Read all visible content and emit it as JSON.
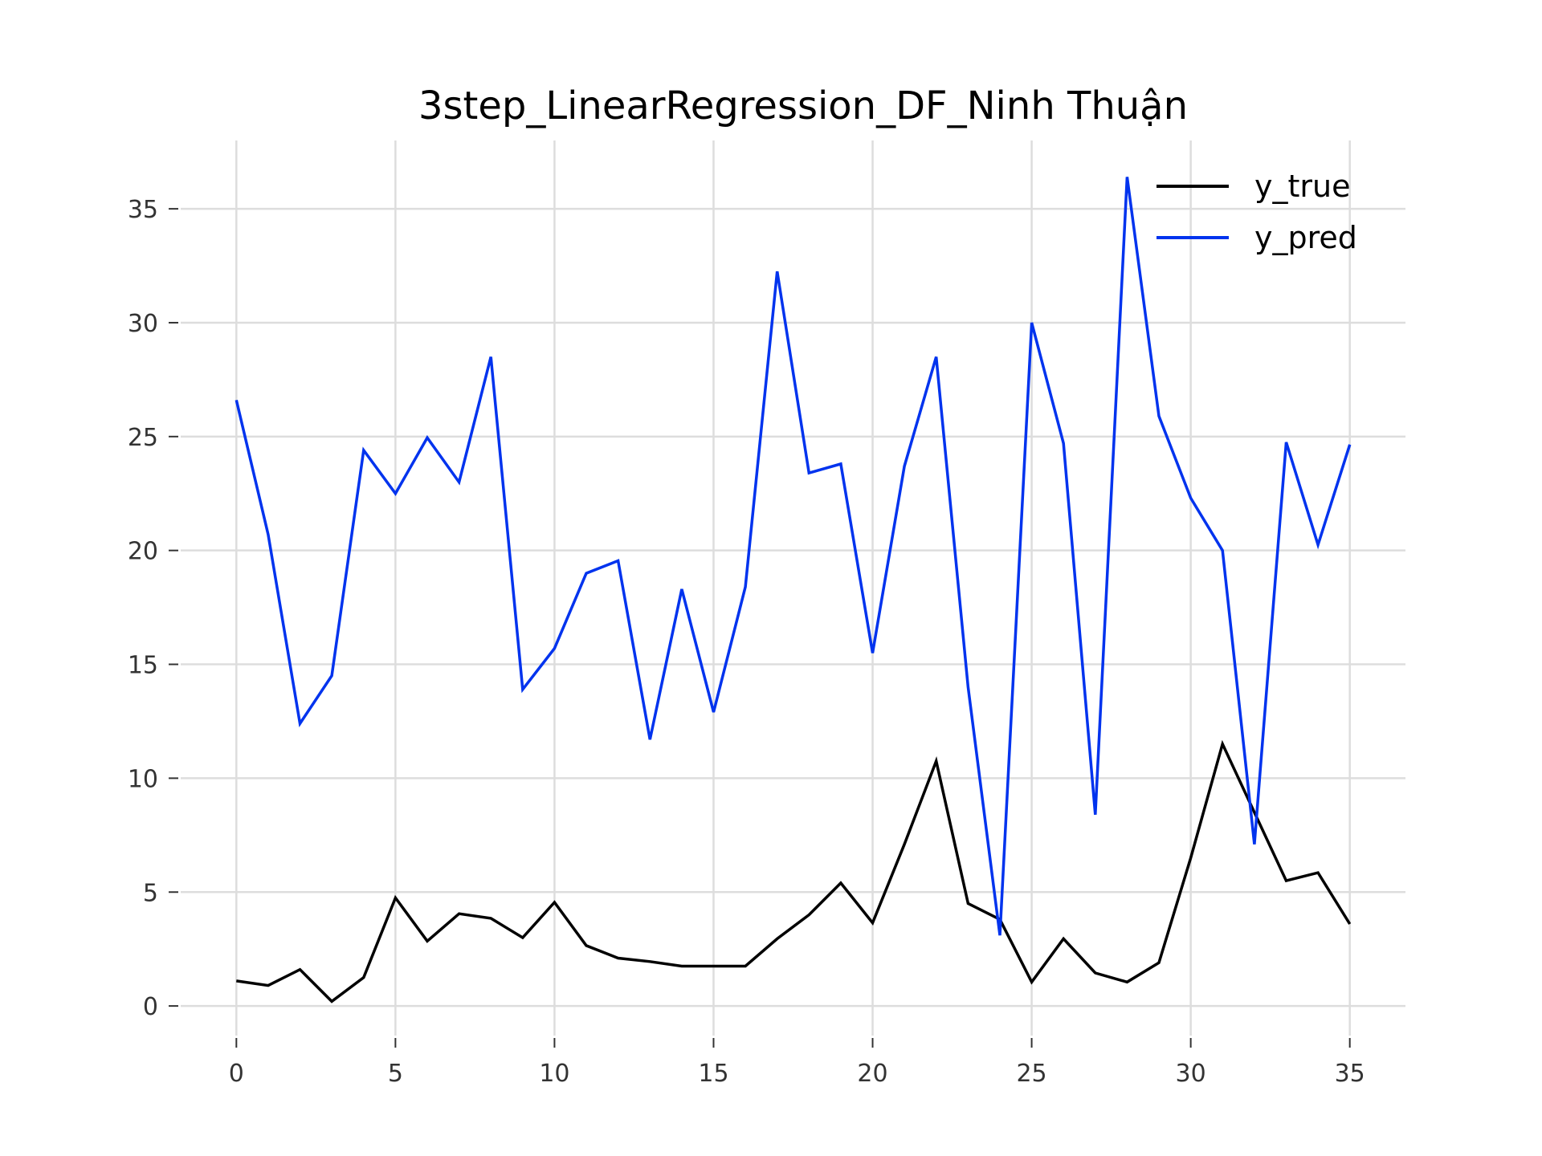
{
  "chart_data": {
    "type": "line",
    "title": "3step_LinearRegression_DF_Ninh Thuận",
    "xlabel": "",
    "ylabel": "",
    "x": [
      0,
      1,
      2,
      3,
      4,
      5,
      6,
      7,
      8,
      9,
      10,
      11,
      12,
      13,
      14,
      15,
      16,
      17,
      18,
      19,
      20,
      21,
      22,
      23,
      24,
      25,
      26,
      27,
      28,
      29,
      30,
      31,
      32,
      33,
      34,
      35
    ],
    "xlim": [
      -1.75,
      36.75
    ],
    "ylim": [
      -1.3,
      38.0
    ],
    "xticks": [
      0,
      5,
      10,
      15,
      20,
      25,
      30,
      35
    ],
    "yticks": [
      0,
      5,
      10,
      15,
      20,
      25,
      30,
      35
    ],
    "grid": true,
    "legend_position": "top-right",
    "series": [
      {
        "name": "y_true",
        "color": "#000000",
        "values": [
          1.1,
          0.9,
          1.6,
          0.2,
          1.25,
          4.75,
          2.85,
          4.05,
          3.85,
          3.0,
          4.55,
          2.65,
          2.1,
          1.95,
          1.75,
          1.75,
          1.75,
          2.95,
          4.0,
          5.4,
          3.65,
          7.1,
          10.75,
          4.5,
          3.8,
          1.05,
          2.95,
          1.45,
          1.05,
          1.9,
          6.5,
          11.5,
          8.5,
          5.5,
          5.85,
          3.6
        ]
      },
      {
        "name": "y_pred",
        "color": "#0033ee",
        "values": [
          26.6,
          20.7,
          12.4,
          14.5,
          24.4,
          22.5,
          24.95,
          23.0,
          28.5,
          13.9,
          15.7,
          19.0,
          19.55,
          11.7,
          18.3,
          12.9,
          18.4,
          32.25,
          23.4,
          23.8,
          15.5,
          23.7,
          28.5,
          14.0,
          3.1,
          30.0,
          24.7,
          8.4,
          36.4,
          25.9,
          22.3,
          20.0,
          7.1,
          24.75,
          20.25,
          24.65
        ]
      }
    ]
  }
}
